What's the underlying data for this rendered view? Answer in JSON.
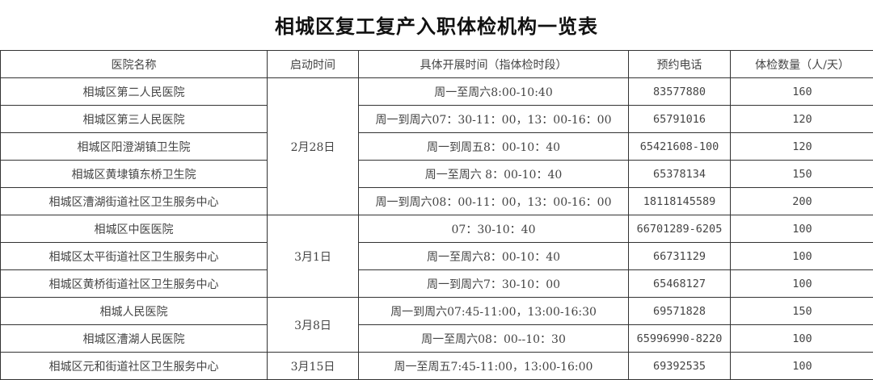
{
  "title": "相城区复工复产入职体检机构一览表",
  "headers": [
    "医院名称",
    "启动时间",
    "具体开展时间（指体检时段）",
    "预约电话",
    "体检数量（人/天）"
  ],
  "groups": [
    {
      "start": "2月28日",
      "rows": [
        {
          "name": "相城区第二人民医院",
          "hours": "周一至周六8:00-10:40",
          "phone": "83577880",
          "quota": "160"
        },
        {
          "name": "相城区第三人民医院",
          "hours": "周一到周六07：30-11：00，13：00-16：00",
          "phone": "65791016",
          "quota": "120"
        },
        {
          "name": "相城区阳澄湖镇卫生院",
          "hours": "周一到周五8：00-10：40",
          "phone": "65421608-100",
          "quota": "120"
        },
        {
          "name": "相城区黄埭镇东桥卫生院",
          "hours": "周一至周六 8：00-10：40",
          "phone": "65378134",
          "quota": "150"
        },
        {
          "name": "相城区漕湖街道社区卫生服务中心",
          "hours": "周一到周六08：00-11：00，13：00-16：00",
          "phone": "18118145589",
          "quota": "200"
        }
      ]
    },
    {
      "start": "3月1日",
      "rows": [
        {
          "name": "相城区中医医院",
          "hours": "07：30-10：40",
          "phone": "66701289-6205",
          "quota": "100"
        },
        {
          "name": "相城区太平街道社区卫生服务中心",
          "hours": "周一至周六8：00-10：40",
          "phone": "66731129",
          "quota": "100"
        },
        {
          "name": "相城区黄桥街道社区卫生服务中心",
          "hours": "周一到周六7：30-10：00",
          "phone": "65468127",
          "quota": "100"
        }
      ]
    },
    {
      "start": "3月8日",
      "rows": [
        {
          "name": "相城人民医院",
          "hours": "周一到周六07:45-11:00，13:00-16:30",
          "phone": "69571828",
          "quota": "150"
        },
        {
          "name": "相城区漕湖人民医院",
          "hours": "周一至周六08：00--10：30",
          "phone": "65996990-8220",
          "quota": "100"
        }
      ]
    },
    {
      "start": "3月15日",
      "rows": [
        {
          "name": "相城区元和街道社区卫生服务中心",
          "hours": "周一至周五7:45-11:00，13:00-16:00",
          "phone": "69392535",
          "quota": "100"
        }
      ]
    }
  ]
}
